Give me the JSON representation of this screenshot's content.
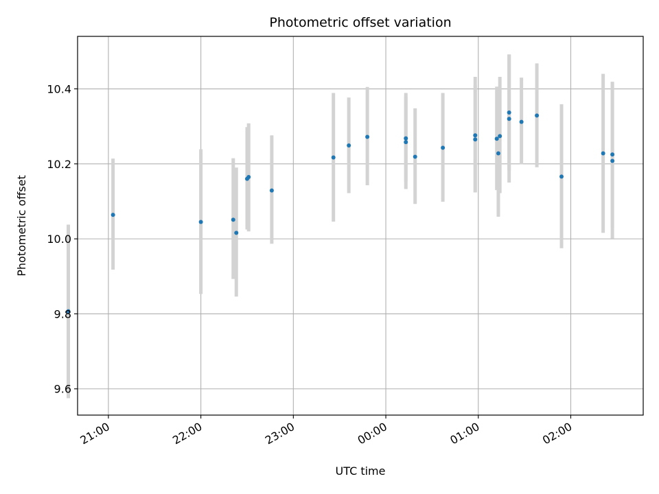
{
  "chart_data": {
    "type": "scatter",
    "title": "Photometric offset variation",
    "xlabel": "UTC time",
    "ylabel": "Photometric offset",
    "xlim": [
      "20:40",
      "02:47"
    ],
    "ylim": [
      9.53,
      10.54
    ],
    "x_ticks": [
      "21:00",
      "22:00",
      "23:00",
      "00:00",
      "01:00",
      "02:00"
    ],
    "y_ticks": [
      "9.6",
      "9.8",
      "10.0",
      "10.2",
      "10.4"
    ],
    "grid": true,
    "point_color": "#1f77b4",
    "errorbar_color": "#d3d3d3",
    "points": [
      {
        "t": "20:34",
        "y": 9.807,
        "lo": 9.575,
        "hi": 10.038
      },
      {
        "t": "21:03",
        "y": 10.064,
        "lo": 9.918,
        "hi": 10.214
      },
      {
        "t": "22:00",
        "y": 10.045,
        "lo": 9.853,
        "hi": 10.239
      },
      {
        "t": "22:21",
        "y": 10.051,
        "lo": 9.893,
        "hi": 10.215
      },
      {
        "t": "22:23",
        "y": 10.016,
        "lo": 9.846,
        "hi": 10.19
      },
      {
        "t": "22:30",
        "y": 10.16,
        "lo": 10.025,
        "hi": 10.298
      },
      {
        "t": "22:31",
        "y": 10.165,
        "lo": 10.02,
        "hi": 10.308
      },
      {
        "t": "22:46",
        "y": 10.129,
        "lo": 9.987,
        "hi": 10.276
      },
      {
        "t": "23:26",
        "y": 10.217,
        "lo": 10.046,
        "hi": 10.389
      },
      {
        "t": "23:36",
        "y": 10.249,
        "lo": 10.122,
        "hi": 10.377
      },
      {
        "t": "23:48",
        "y": 10.272,
        "lo": 10.143,
        "hi": 10.405
      },
      {
        "t": "00:13",
        "y": 10.268,
        "lo": 10.153,
        "hi": 10.389
      },
      {
        "t": "00:13",
        "y": 10.258,
        "lo": 10.133,
        "hi": 10.38
      },
      {
        "t": "00:19",
        "y": 10.219,
        "lo": 10.093,
        "hi": 10.348
      },
      {
        "t": "00:37",
        "y": 10.243,
        "lo": 10.099,
        "hi": 10.389
      },
      {
        "t": "00:58",
        "y": 10.276,
        "lo": 10.124,
        "hi": 10.432
      },
      {
        "t": "00:58",
        "y": 10.265,
        "lo": 10.124,
        "hi": 10.41
      },
      {
        "t": "01:12",
        "y": 10.267,
        "lo": 10.13,
        "hi": 10.406
      },
      {
        "t": "01:13",
        "y": 10.228,
        "lo": 10.059,
        "hi": 10.403
      },
      {
        "t": "01:14",
        "y": 10.274,
        "lo": 10.122,
        "hi": 10.432
      },
      {
        "t": "01:20",
        "y": 10.337,
        "lo": 10.182,
        "hi": 10.491
      },
      {
        "t": "01:20",
        "y": 10.32,
        "lo": 10.15,
        "hi": 10.492
      },
      {
        "t": "01:28",
        "y": 10.312,
        "lo": 10.199,
        "hi": 10.43
      },
      {
        "t": "01:38",
        "y": 10.329,
        "lo": 10.191,
        "hi": 10.468
      },
      {
        "t": "01:54",
        "y": 10.166,
        "lo": 9.975,
        "hi": 10.359
      },
      {
        "t": "02:21",
        "y": 10.228,
        "lo": 10.016,
        "hi": 10.44
      },
      {
        "t": "02:27",
        "y": 10.225,
        "lo": 10.031,
        "hi": 10.419
      },
      {
        "t": "02:27",
        "y": 10.208,
        "lo": 10.001,
        "hi": 10.416
      }
    ]
  }
}
